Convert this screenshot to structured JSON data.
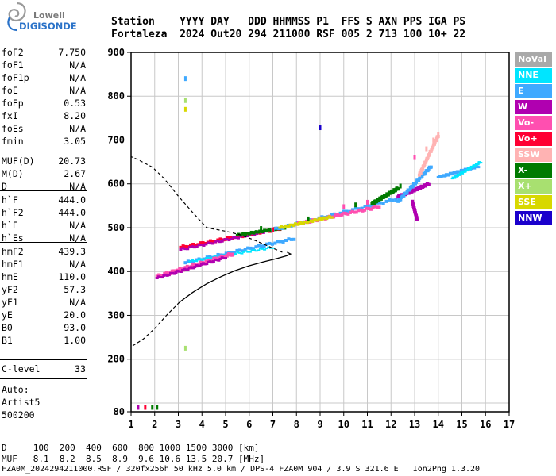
{
  "logo": {
    "line1": "Lowell",
    "line2": "DIGISONDE"
  },
  "header": {
    "line1": "Station    YYYY DAY   DDD HHMMSS P1  FFS S AXN PPS IGA PS",
    "line2": "Fortaleza  2024 Out20 294 211000 RSF 005 2 713 100 10+ 22"
  },
  "params": {
    "group1": [
      {
        "k": "foF2",
        "v": "7.750"
      },
      {
        "k": "foF1",
        "v": "N/A"
      },
      {
        "k": "foF1p",
        "v": "N/A"
      },
      {
        "k": "foE",
        "v": "N/A"
      },
      {
        "k": "foEp",
        "v": "0.53"
      },
      {
        "k": "fxI",
        "v": "8.20"
      },
      {
        "k": "foEs",
        "v": "N/A"
      },
      {
        "k": "fmin",
        "v": "3.05"
      }
    ],
    "group2": [
      {
        "k": "MUF(D)",
        "v": "20.73"
      },
      {
        "k": "M(D)",
        "v": "2.67"
      },
      {
        "k": "D",
        "v": "N/A"
      }
    ],
    "group3": [
      {
        "k": "h`F",
        "v": "444.0"
      },
      {
        "k": "h`F2",
        "v": "444.0"
      },
      {
        "k": "h`E",
        "v": "N/A"
      },
      {
        "k": "h`Es",
        "v": "N/A"
      }
    ],
    "group4": [
      {
        "k": "hmF2",
        "v": "439.3"
      },
      {
        "k": "hmF1",
        "v": "N/A"
      },
      {
        "k": "hmE",
        "v": "110.0"
      },
      {
        "k": "yF2",
        "v": "57.3"
      },
      {
        "k": "yF1",
        "v": "N/A"
      },
      {
        "k": "yE",
        "v": "20.0"
      },
      {
        "k": "B0",
        "v": "93.0"
      },
      {
        "k": "B1",
        "v": "1.00"
      }
    ],
    "clevel": {
      "k": "C-level",
      "v": "33"
    },
    "auto": [
      "Auto:",
      "Artist5",
      "500200"
    ]
  },
  "legend": [
    {
      "label": "NoVal",
      "color": "#a9a9a9"
    },
    {
      "label": "NNE",
      "color": "#00e5ff"
    },
    {
      "label": "E",
      "color": "#3fa9ff"
    },
    {
      "label": "W",
      "color": "#b000b0"
    },
    {
      "label": "Vo-",
      "color": "#ff4fb0"
    },
    {
      "label": "Vo+",
      "color": "#ff0033"
    },
    {
      "label": "SSW",
      "color": "#ffb3b3"
    },
    {
      "label": "X-",
      "color": "#007a00"
    },
    {
      "label": "X+",
      "color": "#a8e070"
    },
    {
      "label": "SSE",
      "color": "#d8d800"
    },
    {
      "label": "NNW",
      "color": "#1a00cc"
    }
  ],
  "footer": {
    "line1": "D     100  200  400  600  800 1000 1500 3000 [km]",
    "line2": "MUF   8.1  8.2  8.5  8.9  9.6 10.6 13.5 20.7 [MHz]",
    "line3": "FZA0M_2024294211000.RSF / 320fx256h 50 kHz 5.0 km / DPS-4 FZA0M 904 / 3.9 S 321.6 E   Ion2Png 1.3.20"
  },
  "chart_data": {
    "type": "scatter",
    "xlim": [
      1,
      17
    ],
    "ylim": [
      80,
      900
    ],
    "xticks": [
      1,
      2,
      3,
      4,
      5,
      6,
      7,
      8,
      9,
      10,
      11,
      12,
      13,
      14,
      15,
      16,
      17
    ],
    "yticks": [
      80,
      200,
      300,
      400,
      500,
      600,
      700,
      800,
      900
    ],
    "grid": true,
    "profile_solid": [
      [
        3.05,
        330
      ],
      [
        3.6,
        352
      ],
      [
        4.2,
        372
      ],
      [
        4.8,
        388
      ],
      [
        5.4,
        402
      ],
      [
        6.0,
        413
      ],
      [
        6.6,
        422
      ],
      [
        7.2,
        430
      ],
      [
        7.6,
        436
      ],
      [
        7.75,
        440
      ],
      [
        7.6,
        444
      ]
    ],
    "profile_dashed": [
      [
        7.4,
        444
      ],
      [
        6.8,
        458
      ],
      [
        6.2,
        472
      ],
      [
        5.6,
        484
      ],
      [
        5.0,
        492
      ],
      [
        4.6,
        496
      ],
      [
        4.2,
        500
      ],
      [
        3.6,
        535
      ],
      [
        3.0,
        572
      ],
      [
        2.4,
        612
      ],
      [
        1.9,
        638
      ],
      [
        1.3,
        655
      ],
      [
        1.0,
        662
      ]
    ],
    "profile_dashed_low": [
      [
        3.05,
        330
      ],
      [
        2.5,
        300
      ],
      [
        2.0,
        270
      ],
      [
        1.5,
        245
      ],
      [
        1.0,
        228
      ]
    ],
    "traces": [
      {
        "name": "Vo+",
        "color": "#ff0033",
        "from": [
          3.1,
          455
        ],
        "to": [
          7.3,
          498
        ],
        "w": 4
      },
      {
        "name": "W",
        "color": "#b000b0",
        "from": [
          3.1,
          450
        ],
        "to": [
          7.0,
          495
        ],
        "w": 3
      },
      {
        "name": "X-",
        "color": "#007a00",
        "from": [
          5.5,
          483
        ],
        "to": [
          7.5,
          500
        ],
        "w": 3
      },
      {
        "name": "E",
        "color": "#3fa9ff",
        "from": [
          3.3,
          420
        ],
        "to": [
          7.9,
          475
        ],
        "w": 4
      },
      {
        "name": "NNE",
        "color": "#00e5ff",
        "from": [
          3.5,
          423
        ],
        "to": [
          7.0,
          455
        ],
        "w": 2
      },
      {
        "name": "Vo-",
        "color": "#ff4fb0",
        "from": [
          2.1,
          388
        ],
        "to": [
          5.3,
          440
        ],
        "w": 5
      },
      {
        "name": "W",
        "color": "#b000b0",
        "from": [
          2.1,
          385
        ],
        "to": [
          5.0,
          432
        ],
        "w": 3
      },
      {
        "name": "E",
        "color": "#3fa9ff",
        "from": [
          7.0,
          495
        ],
        "to": [
          12.2,
          565
        ],
        "w": 4
      },
      {
        "name": "Vo-",
        "color": "#ff4fb0",
        "from": [
          8.0,
          508
        ],
        "to": [
          11.5,
          548
        ],
        "w": 4
      },
      {
        "name": "SSE",
        "color": "#d8d800",
        "from": [
          7.3,
          500
        ],
        "to": [
          9.5,
          525
        ],
        "w": 3
      },
      {
        "name": "X-",
        "color": "#007a00",
        "from": [
          11.2,
          555
        ],
        "to": [
          12.3,
          590
        ],
        "w": 4
      },
      {
        "name": "W",
        "color": "#b000b0",
        "from": [
          12.3,
          570
        ],
        "to": [
          13.6,
          600
        ],
        "w": 4
      },
      {
        "name": "E",
        "color": "#3fa9ff",
        "from": [
          12.3,
          560
        ],
        "to": [
          13.7,
          640
        ],
        "w": 4
      },
      {
        "name": "SSW",
        "color": "#ffb3b3",
        "from": [
          13.2,
          620
        ],
        "to": [
          14.0,
          710
        ],
        "w": 4
      },
      {
        "name": "E",
        "color": "#3fa9ff",
        "from": [
          14.0,
          615
        ],
        "to": [
          15.7,
          640
        ],
        "w": 3
      },
      {
        "name": "NNE",
        "color": "#00e5ff",
        "from": [
          14.6,
          612
        ],
        "to": [
          15.8,
          650
        ],
        "w": 2
      },
      {
        "name": "W",
        "color": "#b000b0",
        "from": [
          12.9,
          560
        ],
        "to": [
          13.1,
          520
        ],
        "w": 3
      }
    ],
    "spots": [
      {
        "x": 3.3,
        "y": 840,
        "color": "#3fa9ff"
      },
      {
        "x": 3.3,
        "y": 770,
        "color": "#d8d800"
      },
      {
        "x": 3.3,
        "y": 790,
        "color": "#a8e070"
      },
      {
        "x": 9.0,
        "y": 728,
        "color": "#1a00cc"
      },
      {
        "x": 3.3,
        "y": 225,
        "color": "#a8e070"
      },
      {
        "x": 1.3,
        "y": 90,
        "color": "#b000b0"
      },
      {
        "x": 1.6,
        "y": 90,
        "color": "#ff0033"
      },
      {
        "x": 1.9,
        "y": 90,
        "color": "#007a00"
      },
      {
        "x": 2.1,
        "y": 90,
        "color": "#007a00"
      },
      {
        "x": 12.4,
        "y": 595,
        "color": "#007a00"
      },
      {
        "x": 13.0,
        "y": 660,
        "color": "#ff4fb0"
      },
      {
        "x": 13.5,
        "y": 680,
        "color": "#ffb3b3"
      },
      {
        "x": 13.8,
        "y": 700,
        "color": "#ffb3b3"
      },
      {
        "x": 14.0,
        "y": 712,
        "color": "#ffb3b3"
      },
      {
        "x": 10.0,
        "y": 548,
        "color": "#ff4fb0"
      },
      {
        "x": 10.5,
        "y": 552,
        "color": "#007a00"
      },
      {
        "x": 11.0,
        "y": 558,
        "color": "#ff4fb0"
      },
      {
        "x": 6.5,
        "y": 498,
        "color": "#007a00"
      },
      {
        "x": 7.0,
        "y": 495,
        "color": "#ff0033"
      },
      {
        "x": 8.5,
        "y": 520,
        "color": "#007a00"
      }
    ]
  }
}
